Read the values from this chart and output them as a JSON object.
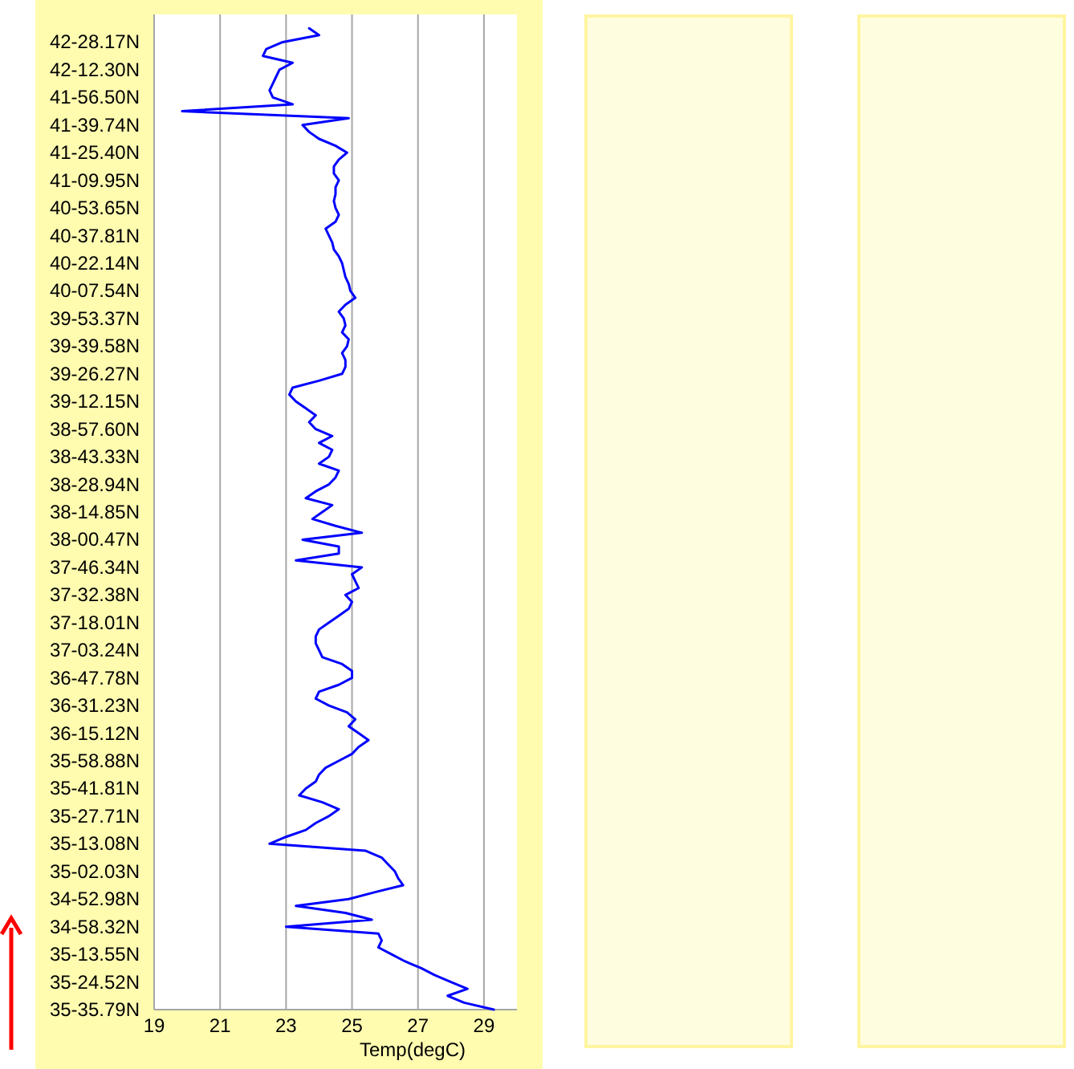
{
  "chart_data": {
    "type": "line",
    "orientation": "horizontal",
    "xlabel": "Temp(degC)",
    "xlim": [
      19,
      30
    ],
    "xticks": [
      19,
      21,
      23,
      25,
      27,
      29
    ],
    "grid": "x",
    "categories": [
      null,
      null,
      null,
      null,
      "42-28.17N",
      null,
      null,
      null,
      "42-12.30N",
      null,
      null,
      null,
      "41-56.50N",
      null,
      null,
      null,
      "41-39.74N",
      null,
      null,
      null,
      "41-25.40N",
      null,
      null,
      null,
      "41-09.95N",
      null,
      null,
      null,
      "40-53.65N",
      null,
      null,
      null,
      "40-37.81N",
      null,
      null,
      null,
      "40-22.14N",
      null,
      null,
      null,
      "40-07.54N",
      null,
      null,
      null,
      "39-53.37N",
      null,
      null,
      null,
      "39-39.58N",
      null,
      null,
      null,
      "39-26.27N",
      null,
      null,
      null,
      "39-12.15N",
      null,
      null,
      null,
      "38-57.60N",
      null,
      null,
      null,
      "38-43.33N",
      null,
      null,
      null,
      "38-28.94N",
      null,
      null,
      null,
      "38-14.85N",
      null,
      null,
      null,
      "38-00.47N",
      null,
      null,
      null,
      "37-46.34N",
      null,
      null,
      null,
      "37-32.38N",
      null,
      null,
      null,
      "37-18.01N",
      null,
      null,
      null,
      "37-03.24N",
      null,
      null,
      null,
      "36-47.78N",
      null,
      null,
      null,
      "36-31.23N",
      null,
      null,
      null,
      "36-15.12N",
      null,
      null,
      null,
      "35-58.88N",
      null,
      null,
      null,
      "35-41.81N",
      null,
      null,
      null,
      "35-27.71N",
      null,
      null,
      null,
      "35-13.08N",
      null,
      null,
      null,
      "35-02.03N",
      null,
      null,
      null,
      "34-52.98N",
      null,
      null,
      null,
      "34-58.32N",
      null,
      null,
      null,
      "35-13.55N",
      null,
      null,
      null,
      "35-24.52N",
      null,
      null,
      null,
      "35-35.79N"
    ],
    "series": [
      {
        "color": "#0000ff",
        "values": [
          null,
          null,
          23.7,
          24.0,
          22.9,
          22.4,
          22.3,
          23.2,
          22.8,
          22.7,
          22.6,
          22.5,
          22.6,
          23.2,
          19.85,
          24.9,
          23.5,
          23.7,
          24.0,
          24.5,
          24.85,
          24.6,
          24.45,
          24.45,
          24.6,
          24.5,
          24.5,
          24.45,
          24.5,
          24.6,
          24.5,
          24.2,
          24.3,
          24.4,
          24.45,
          24.6,
          24.7,
          24.75,
          24.8,
          24.9,
          24.95,
          25.1,
          24.8,
          24.6,
          24.75,
          24.8,
          24.7,
          24.9,
          24.85,
          24.7,
          24.8,
          24.8,
          24.7,
          24.0,
          23.2,
          23.1,
          23.3,
          23.6,
          23.9,
          23.7,
          23.9,
          24.4,
          24.0,
          24.4,
          24.3,
          24.0,
          24.6,
          24.5,
          24.3,
          23.9,
          23.6,
          24.4,
          24.1,
          23.8,
          24.5,
          25.3,
          23.5,
          24.6,
          24.6,
          23.3,
          25.3,
          25.0,
          25.1,
          25.2,
          24.8,
          25.0,
          24.9,
          24.6,
          24.3,
          24.0,
          23.9,
          23.9,
          24.0,
          24.1,
          24.7,
          25.0,
          25.0,
          24.6,
          24.0,
          23.9,
          24.3,
          24.85,
          25.1,
          24.9,
          25.2,
          25.5,
          25.2,
          25.0,
          24.6,
          24.2,
          24.0,
          23.9,
          23.6,
          23.4,
          24.1,
          24.6,
          24.3,
          23.9,
          23.6,
          23.0,
          22.5,
          25.4,
          25.9,
          26.1,
          26.3,
          26.4,
          26.55,
          25.7,
          24.9,
          23.3,
          24.8,
          25.6,
          23.0,
          25.8,
          25.9,
          25.8,
          26.2,
          26.6,
          27.1,
          27.5,
          28.0,
          28.5,
          27.9,
          28.4,
          29.3
        ]
      }
    ]
  }
}
